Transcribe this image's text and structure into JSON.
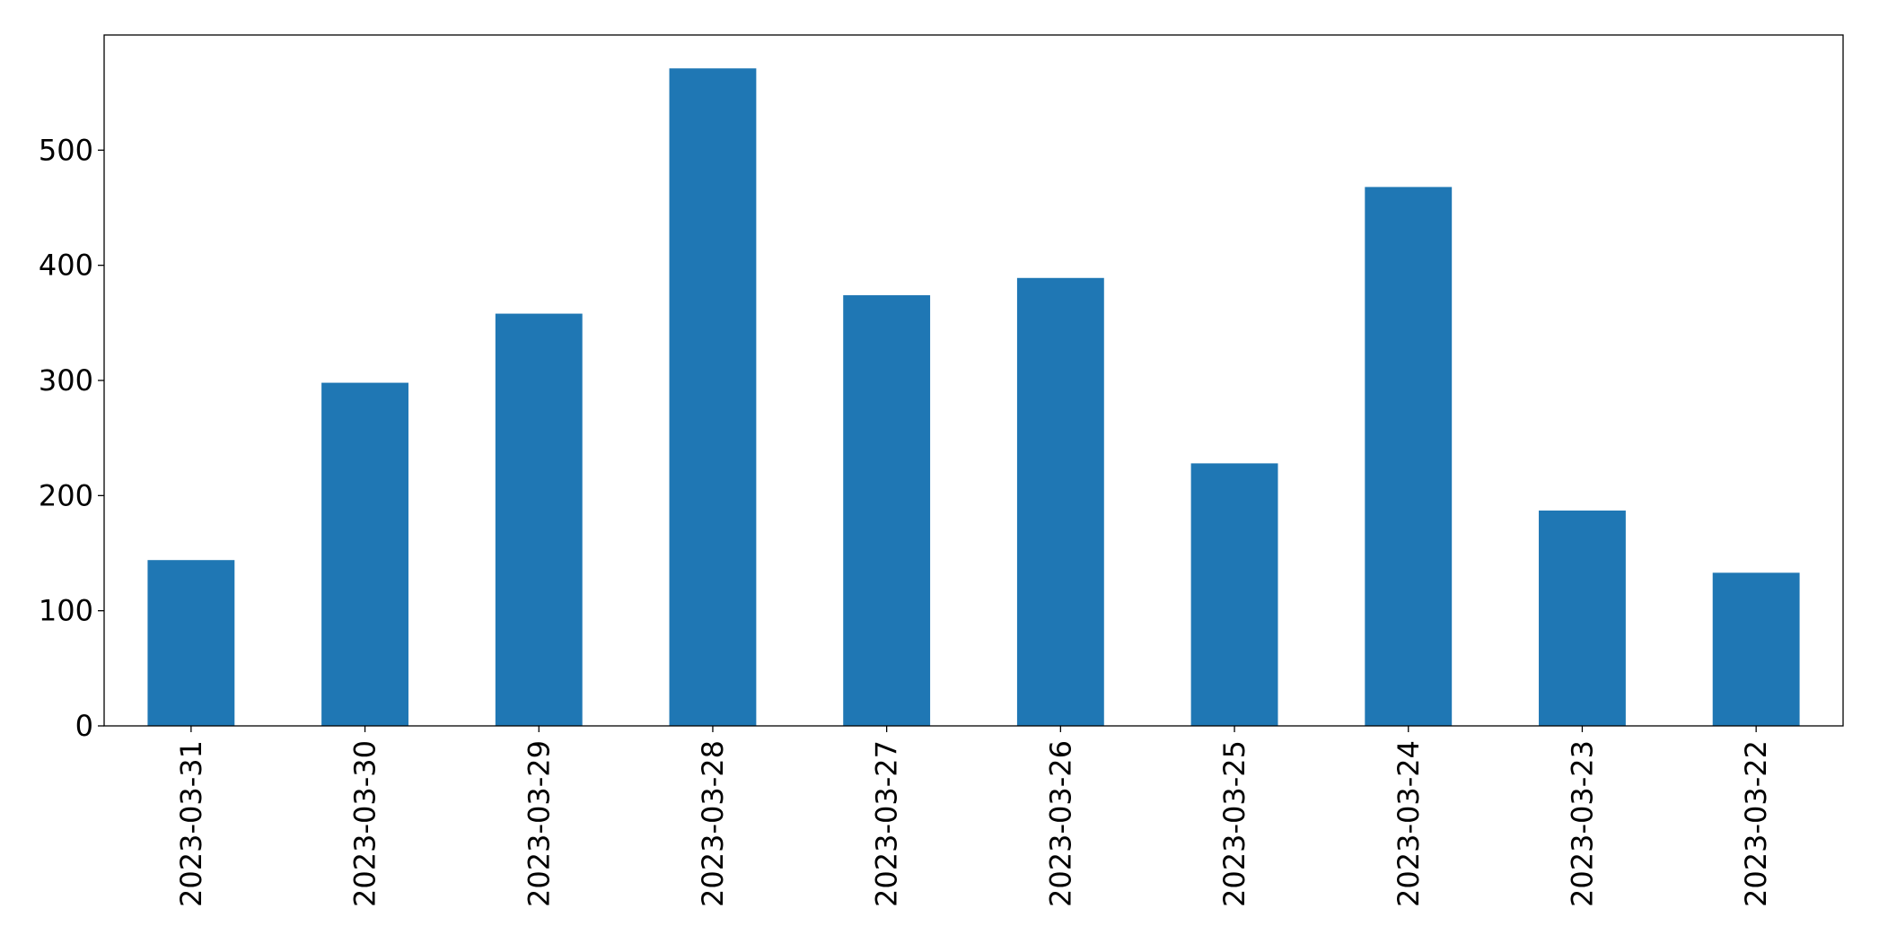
{
  "chart_data": {
    "type": "bar",
    "categories": [
      "2023-03-31",
      "2023-03-30",
      "2023-03-29",
      "2023-03-28",
      "2023-03-27",
      "2023-03-26",
      "2023-03-25",
      "2023-03-24",
      "2023-03-23",
      "2023-03-22"
    ],
    "values": [
      144,
      298,
      358,
      571,
      374,
      389,
      228,
      468,
      187,
      133
    ],
    "color": "#1f77b4",
    "ylim": [
      0,
      600
    ],
    "yticks": [
      0,
      100,
      200,
      300,
      400,
      500
    ],
    "grid": false
  }
}
